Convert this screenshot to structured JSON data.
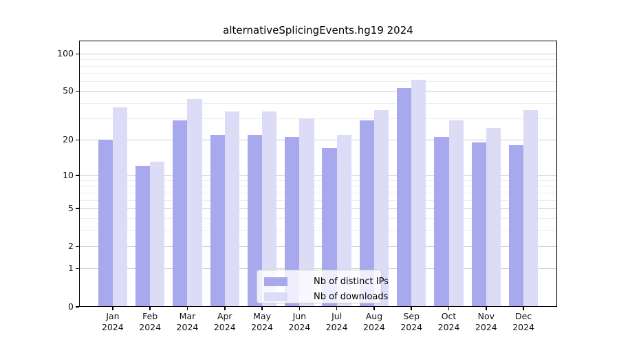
{
  "title": "alternativeSplicingEvents.hg19 2024",
  "chart_data": {
    "type": "bar",
    "title": "alternativeSplicingEvents.hg19 2024",
    "categories": [
      "Jan",
      "Feb",
      "Mar",
      "Apr",
      "May",
      "Jun",
      "Jul",
      "Aug",
      "Sep",
      "Oct",
      "Nov",
      "Dec"
    ],
    "category_year": "2024",
    "series": [
      {
        "name": "Nb of distinct IPs",
        "color": "#a8a8ee",
        "values": [
          20,
          12,
          29,
          22,
          22,
          21,
          17,
          29,
          53,
          21,
          19,
          18
        ]
      },
      {
        "name": "Nb of downloads",
        "color": "#dcdcf7",
        "values": [
          37,
          13,
          43,
          34,
          34,
          30,
          22,
          35,
          62,
          29,
          25,
          35
        ]
      }
    ],
    "yscale": "log1p",
    "ylim": [
      0,
      127
    ],
    "ytick_labels": [
      0,
      1,
      2,
      5,
      10,
      20,
      50,
      100
    ],
    "yminor_gridlines": [
      3,
      4,
      6,
      7,
      8,
      9,
      30,
      40,
      60,
      70,
      80,
      90
    ],
    "grid": true,
    "legend_position": "lower center inside",
    "colors": {
      "major_grid": "#c9c9c9",
      "minor_grid": "#ededed",
      "spine": "#000000",
      "legend_border": "#cccccc"
    }
  }
}
